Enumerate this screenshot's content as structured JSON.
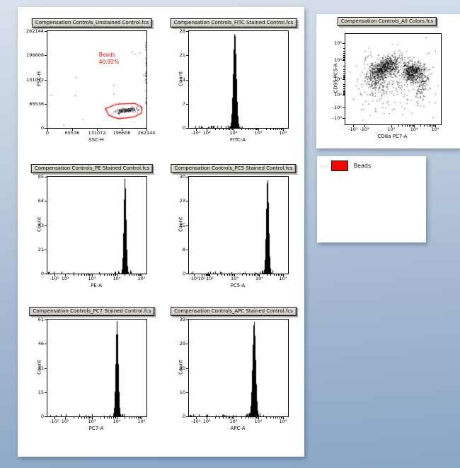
{
  "colors": {
    "gate_red": "#ff0000",
    "titlebar_bg": "#d6d2c9",
    "panel_bg": "#ffffff"
  },
  "legend": {
    "handle": "...",
    "items": [
      {
        "label": "Beads",
        "color": "#ff0000"
      }
    ]
  },
  "chart_data": [
    {
      "type": "scatter",
      "title": "Compensation Controls_Unstained Control.fcs",
      "xlabel": "SSC-H",
      "ylabel": "FSC-H",
      "xticks": [
        "0",
        "65536",
        "131072",
        "196608",
        "262144"
      ],
      "yticks": [
        "0",
        "65536",
        "131072",
        "196608",
        "262144"
      ],
      "xlim": [
        0,
        262144
      ],
      "ylim": [
        0,
        262144
      ],
      "gate": {
        "label": "Beads",
        "percent": "40.92%",
        "color": "#ff0000",
        "polygon": [
          [
            0.585,
            0.8
          ],
          [
            0.62,
            0.87
          ],
          [
            0.72,
            0.905
          ],
          [
            0.88,
            0.885
          ],
          [
            0.95,
            0.845
          ],
          [
            0.955,
            0.785
          ],
          [
            0.88,
            0.745
          ],
          [
            0.7,
            0.755
          ]
        ]
      },
      "clusters": [
        {
          "shape": "gauss",
          "cx": 0.79,
          "cy": 0.815,
          "sx": 0.055,
          "sy": 0.012,
          "rot": -8,
          "n": 160
        },
        {
          "shape": "uniform",
          "x0": 0.985,
          "x1": 0.995,
          "y0": 0.05,
          "y1": 0.75,
          "n": 26
        },
        {
          "shape": "uniform",
          "x0": 0.03,
          "x1": 0.97,
          "y0": 0.05,
          "y1": 0.97,
          "n": 14
        }
      ],
      "seed": 11
    },
    {
      "type": "histogram",
      "title": "Compensation Controls_FITC Stained Control.fcs",
      "xlabel": "FITC-A",
      "ylabel": "Count",
      "ymax": 28,
      "yticks": [
        "0",
        "7",
        "14",
        "21",
        "28"
      ],
      "xticks": [
        "-10¹",
        "10²",
        "10³",
        "10⁴",
        "10⁵"
      ],
      "xtick_pos": [
        0.07,
        0.18,
        0.45,
        0.7,
        0.95
      ],
      "log_x": true,
      "peak_pos": 0.46,
      "peak_sigma": 0.016,
      "noise": 0.2,
      "noise_span": 0.42,
      "seed": 2
    },
    {
      "type": "histogram",
      "title": "Compensation Controls_PE Stained Control.fcs",
      "xlabel": "PE-A",
      "ylabel": "Count",
      "ymax": 85,
      "yticks": [
        "0",
        "21",
        "43",
        "64",
        "85"
      ],
      "xticks": [
        "-10²",
        "10²",
        "10³",
        "10⁴",
        "10⁵"
      ],
      "xtick_pos": [
        0.07,
        0.18,
        0.45,
        0.7,
        0.95
      ],
      "log_x": true,
      "peak_pos": 0.78,
      "peak_sigma": 0.012,
      "noise": 0.1,
      "noise_span": 0.7,
      "seed": 3
    },
    {
      "type": "histogram",
      "title": "Compensation Controls_PC5 Stained Control.fcs",
      "xlabel": "PC5-A",
      "ylabel": "Count",
      "ymax": 30,
      "yticks": [
        "0",
        "8",
        "15",
        "23",
        "30"
      ],
      "xticks": [
        "-10²",
        "10¹",
        "10²",
        "10³",
        "10⁴",
        "10⁵"
      ],
      "xtick_pos": [
        0.05,
        0.13,
        0.21,
        0.46,
        0.71,
        0.95
      ],
      "log_x": true,
      "peak_pos": 0.79,
      "peak_sigma": 0.013,
      "noise": 0.16,
      "noise_span": 0.72,
      "seed": 4
    },
    {
      "type": "histogram",
      "title": "Compensation Controls_PC7 Stained Control.fcs",
      "xlabel": "PC7-A",
      "ylabel": "Count",
      "ymax": 61,
      "yticks": [
        "0",
        "15",
        "31",
        "46",
        "61"
      ],
      "xticks": [
        "-10²",
        "10²",
        "10³",
        "10⁴",
        "10⁵"
      ],
      "xtick_pos": [
        0.07,
        0.18,
        0.45,
        0.7,
        0.95
      ],
      "log_x": true,
      "peak_pos": 0.7,
      "peak_sigma": 0.013,
      "noise": 0.1,
      "noise_span": 0.6,
      "seed": 5
    },
    {
      "type": "histogram",
      "title": "Compensation Controls_APC Stained Control.fcs",
      "xlabel": "APC-A",
      "ylabel": "Count",
      "ymax": 39,
      "yticks": [
        "0",
        "10",
        "20",
        "29",
        "39"
      ],
      "xticks": [
        "-10¹",
        "10²",
        "10³",
        "10⁴",
        "10⁵"
      ],
      "xtick_pos": [
        0.07,
        0.18,
        0.45,
        0.7,
        0.95
      ],
      "log_x": true,
      "peak_pos": 0.655,
      "peak_sigma": 0.016,
      "noise": 0.22,
      "noise_span": 0.55,
      "seed": 6
    },
    {
      "type": "scatter",
      "title": "Compensation Controls_All Colors.fcs",
      "xlabel": "CD8a PC7-A",
      "ylabel": "CD95 PC5-A",
      "xticks": [
        "-10³",
        "-10²",
        "10³",
        "10⁴",
        "10⁵"
      ],
      "xtick_pos": [
        0.08,
        0.2,
        0.48,
        0.72,
        0.94
      ],
      "yticks": [
        "10⁵",
        "10⁴",
        "10³",
        "10²",
        "-10²",
        "-10³"
      ],
      "ytick_pos": [
        0.1,
        0.29,
        0.5,
        0.67,
        0.81,
        0.93
      ],
      "log_x": true,
      "log_y": true,
      "clusters": [
        {
          "shape": "gauss",
          "cx": 0.42,
          "cy": 0.37,
          "sx": 0.075,
          "sy": 0.05,
          "rot": -32,
          "n": 650
        },
        {
          "shape": "gauss",
          "cx": 0.31,
          "cy": 0.5,
          "sx": 0.06,
          "sy": 0.09,
          "rot": -20,
          "n": 220
        },
        {
          "shape": "gauss",
          "cx": 0.7,
          "cy": 0.42,
          "sx": 0.055,
          "sy": 0.055,
          "rot": 0,
          "n": 520
        },
        {
          "shape": "gauss",
          "cx": 0.8,
          "cy": 0.56,
          "sx": 0.035,
          "sy": 0.1,
          "rot": 10,
          "n": 130
        },
        {
          "shape": "gauss",
          "cx": 0.5,
          "cy": 0.55,
          "sx": 0.18,
          "sy": 0.16,
          "rot": 0,
          "n": 120
        },
        {
          "shape": "uniform",
          "x0": 0.1,
          "x1": 0.95,
          "y0": 0.05,
          "y1": 0.95,
          "n": 60
        }
      ],
      "seed": 7
    }
  ]
}
